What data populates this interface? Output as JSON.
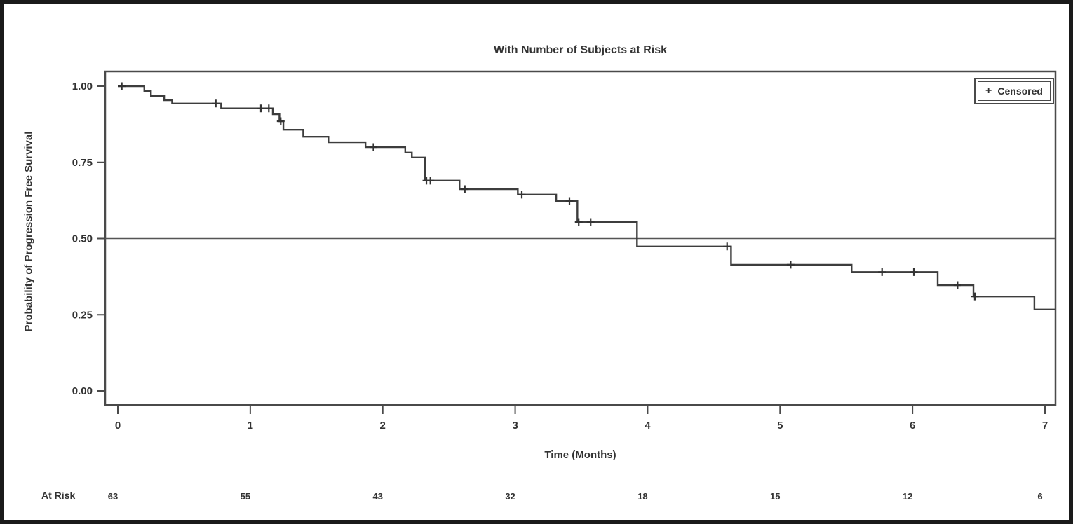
{
  "chart": {
    "title": "With Number of Subjects at Risk",
    "x_label": "Time (Months)",
    "y_label": "Probability of Progression Free Survival",
    "at_risk_label": "At Risk",
    "legend": {
      "marker": "+",
      "label": "Censored"
    }
  },
  "chart_data": {
    "type": "line",
    "subtype": "kaplan_meier_step",
    "title": "With Number of Subjects at Risk",
    "xlabel": "Time (Months)",
    "ylabel": "Probability of Progression Free Survival",
    "xlim": [
      0,
      7.1
    ],
    "ylim": [
      0.0,
      1.0
    ],
    "x_ticks": [
      0,
      1,
      2,
      3,
      4,
      5,
      6,
      7
    ],
    "y_ticks": [
      1.0,
      0.75,
      0.5,
      0.25,
      0.0
    ],
    "y_tick_labels": [
      "1.00",
      "0.75",
      "0.50",
      "0.25",
      "0.00"
    ],
    "grid": false,
    "reference_line_y": 0.5,
    "legend_position": "top-right",
    "line_color": "#3d3d3d",
    "series": [
      {
        "name": "Progression Free Survival",
        "start": [
          0,
          1.0
        ],
        "end_time": 7.08,
        "steps": [
          [
            0.2,
            0.984
          ],
          [
            0.25,
            0.968
          ],
          [
            0.35,
            0.954
          ],
          [
            0.41,
            0.943
          ],
          [
            0.78,
            0.927
          ],
          [
            1.17,
            0.908
          ],
          [
            1.22,
            0.885
          ],
          [
            1.25,
            0.857
          ],
          [
            1.4,
            0.834
          ],
          [
            1.59,
            0.816
          ],
          [
            1.87,
            0.8
          ],
          [
            2.17,
            0.782
          ],
          [
            2.22,
            0.766
          ],
          [
            2.32,
            0.69
          ],
          [
            2.58,
            0.662
          ],
          [
            3.02,
            0.644
          ],
          [
            3.31,
            0.623
          ],
          [
            3.47,
            0.554
          ],
          [
            3.92,
            0.474
          ],
          [
            4.63,
            0.414
          ],
          [
            5.54,
            0.39
          ],
          [
            6.19,
            0.347
          ],
          [
            6.46,
            0.31
          ],
          [
            6.92,
            0.267
          ]
        ],
        "censored": [
          [
            0.03,
            1.0
          ],
          [
            0.74,
            0.943
          ],
          [
            1.08,
            0.927
          ],
          [
            1.14,
            0.927
          ],
          [
            1.23,
            0.885
          ],
          [
            1.93,
            0.8
          ],
          [
            2.33,
            0.69
          ],
          [
            2.36,
            0.69
          ],
          [
            2.62,
            0.662
          ],
          [
            3.05,
            0.644
          ],
          [
            3.41,
            0.623
          ],
          [
            3.48,
            0.554
          ],
          [
            3.57,
            0.554
          ],
          [
            4.6,
            0.474
          ],
          [
            5.08,
            0.414
          ],
          [
            5.77,
            0.39
          ],
          [
            6.01,
            0.39
          ],
          [
            6.34,
            0.347
          ],
          [
            6.47,
            0.31
          ]
        ]
      }
    ],
    "at_risk": {
      "label": "At Risk",
      "times": [
        0,
        1,
        2,
        3,
        4,
        5,
        6,
        7
      ],
      "counts": [
        63,
        55,
        43,
        32,
        18,
        15,
        12,
        6
      ]
    }
  }
}
